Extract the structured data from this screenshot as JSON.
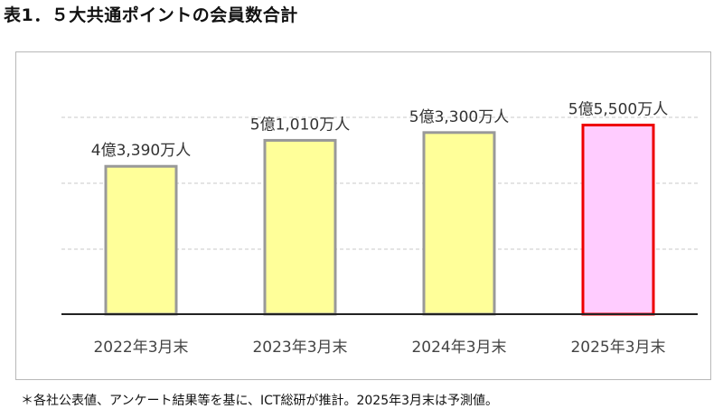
{
  "title": "表1．５大共通ポイントの会員数合計",
  "footnote": "＊各社公表値、アンケート結果等を基に、ICT総研が推計。2025年3月末は予測値。",
  "colors": {
    "actual_fill": "#ffff99",
    "actual_stroke": "#999999",
    "forecast_fill": "#ffccff",
    "forecast_stroke": "#ee0000",
    "gridline": "#c8c8c8",
    "axis": "#222222",
    "label_text": "#333333"
  },
  "chart_data": {
    "type": "bar",
    "categories": [
      "2022年3月末",
      "2023年3月末",
      "2024年3月末",
      "2025年3月末"
    ],
    "values": [
      43390,
      51010,
      53300,
      55500
    ],
    "unit": "万人",
    "data_labels": [
      "4億3,390万人",
      "5億1,010万人",
      "5億3,300万人",
      "5億5,500万人"
    ],
    "forecast": [
      false,
      false,
      false,
      true
    ],
    "ylim": [
      0,
      71000
    ],
    "grid": true,
    "grid_style": "dashed-horizontal",
    "title": "",
    "xlabel": "",
    "ylabel": ""
  }
}
